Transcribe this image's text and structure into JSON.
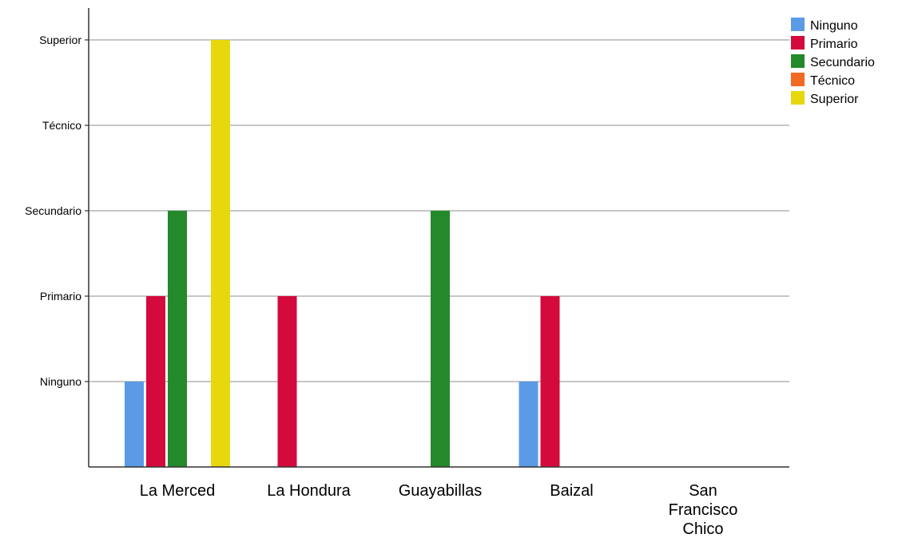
{
  "chart_data": {
    "type": "bar",
    "categories": [
      "La Merced",
      "La Hondura",
      "Guayabillas",
      "Baizal",
      "San Francisco Chico"
    ],
    "category_label_lines": [
      [
        "La Merced"
      ],
      [
        "La Hondura"
      ],
      [
        "Guayabillas"
      ],
      [
        "Baizal"
      ],
      [
        "San",
        "Francisco",
        "Chico"
      ]
    ],
    "y_tick_labels": [
      "Ninguno",
      "Primario",
      "Secundario",
      "Técnico",
      "Superior"
    ],
    "y_tick_values": [
      1,
      2,
      3,
      4,
      5
    ],
    "ylim": [
      0,
      5
    ],
    "grid": true,
    "legend_position": "top-right",
    "series": [
      {
        "name": "Ninguno",
        "color": "#5b9be6",
        "values": [
          1,
          0,
          0,
          1,
          0
        ]
      },
      {
        "name": "Primario",
        "color": "#d40a3c",
        "values": [
          2,
          2,
          0,
          2,
          0
        ]
      },
      {
        "name": "Secundario",
        "color": "#24892a",
        "values": [
          3,
          0,
          3,
          0,
          0
        ]
      },
      {
        "name": "Técnico",
        "color": "#f26a24",
        "values": [
          0,
          0,
          0,
          0,
          0
        ]
      },
      {
        "name": "Superior",
        "color": "#e6d80c",
        "values": [
          5,
          0,
          0,
          0,
          0
        ]
      }
    ],
    "title": "",
    "xlabel": "",
    "ylabel": ""
  }
}
